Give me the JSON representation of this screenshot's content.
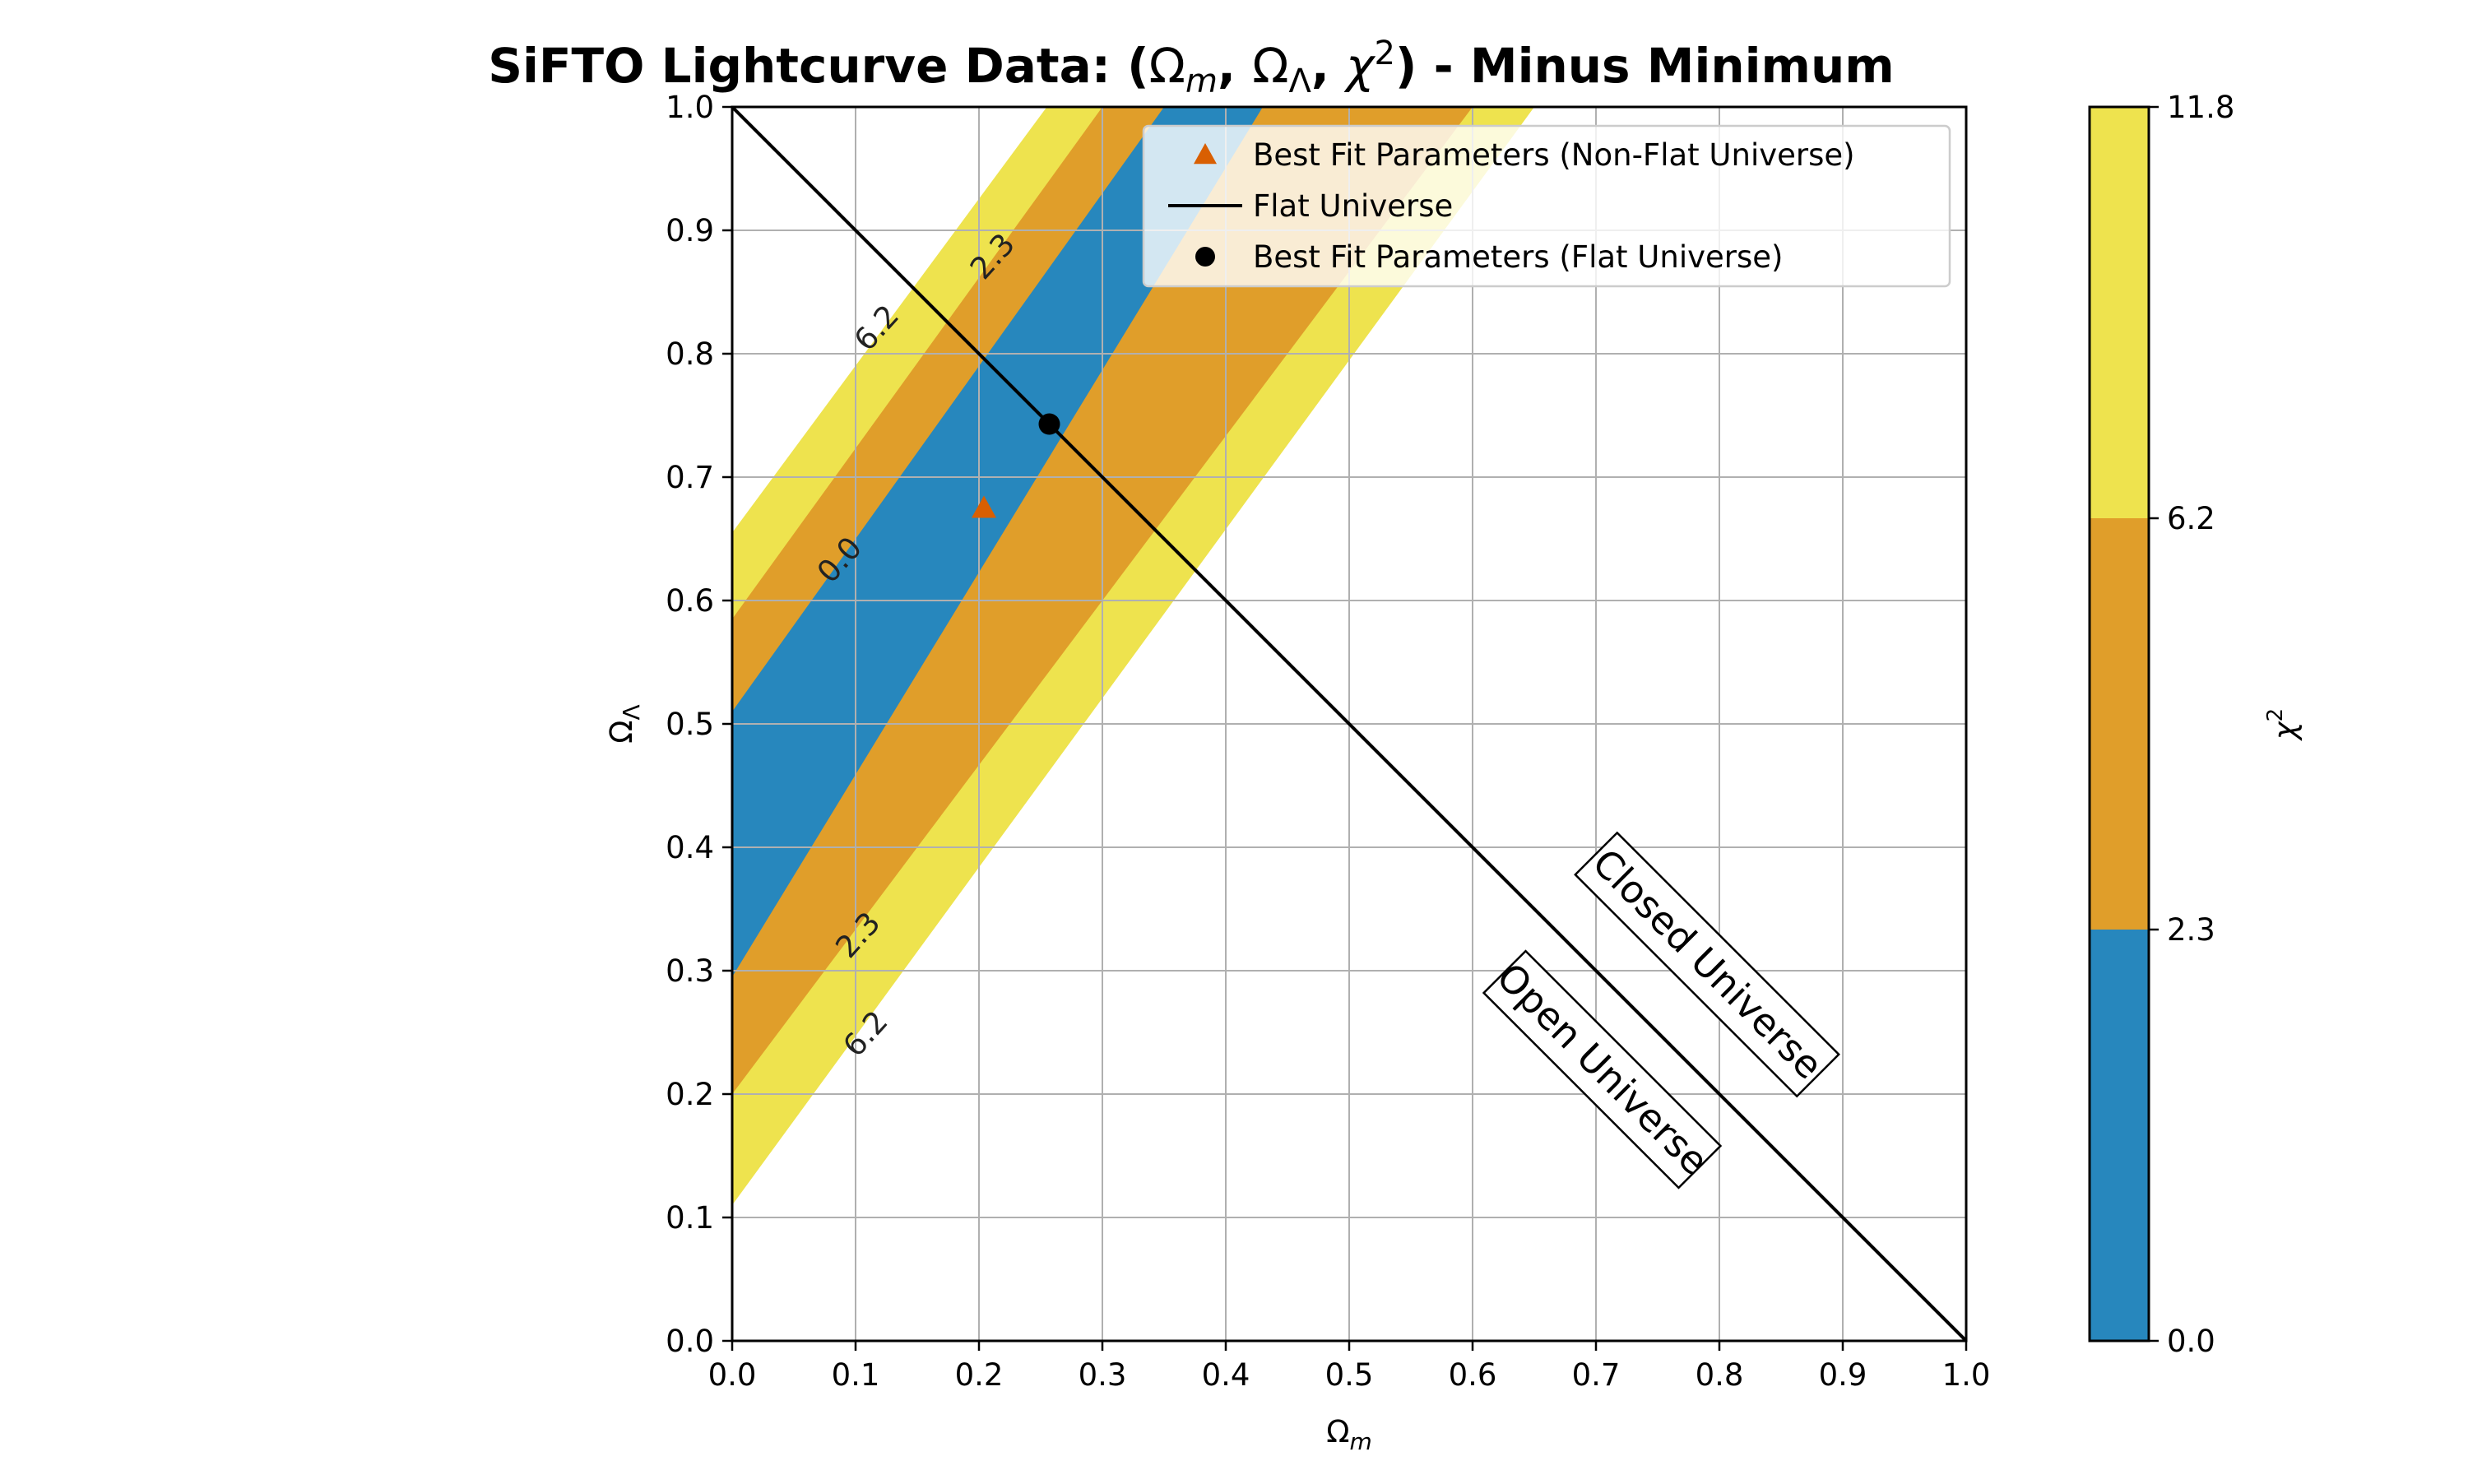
{
  "chart_data": {
    "type": "contour",
    "title": "SiFTO Lightcurve Data: (Ωm, ΩΛ, χ2) - Minus Minimum",
    "title_parts": {
      "prefix": "SiFTO Lightcurve Data: (",
      "omega": "Ω",
      "m": "m",
      "sep1": ", ",
      "lambda": "Λ",
      "sep2": ", ",
      "chi": "χ",
      "sq": "2",
      "suffix": ") - Minus Minimum"
    },
    "xlabel": "Ωm",
    "ylabel": "ΩΛ",
    "xlim": [
      0.0,
      1.0
    ],
    "ylim": [
      0.0,
      1.0
    ],
    "grid": true,
    "x_ticks": [
      "0.0",
      "0.1",
      "0.2",
      "0.3",
      "0.4",
      "0.5",
      "0.6",
      "0.7",
      "0.8",
      "0.9",
      "1.0"
    ],
    "y_ticks": [
      "0.0",
      "0.1",
      "0.2",
      "0.3",
      "0.4",
      "0.5",
      "0.6",
      "0.7",
      "0.8",
      "0.9",
      "1.0"
    ],
    "contour_levels": [
      0.0,
      2.3,
      6.2,
      11.8
    ],
    "bands": [
      {
        "range": [
          0.0,
          2.3
        ],
        "color": "#2787bd",
        "left_edge": [
          [
            0.0,
            0.51
          ],
          [
            0.35,
            1.0
          ]
        ],
        "right_edge": [
          [
            0.0,
            0.295
          ],
          [
            0.43,
            1.0
          ]
        ]
      },
      {
        "range": [
          2.3,
          6.2
        ],
        "color": "#e09e2a",
        "left_edge": [
          [
            0.0,
            0.585
          ],
          [
            0.3,
            1.0
          ]
        ],
        "right_edge": [
          [
            0.0,
            0.2
          ],
          [
            0.6,
            1.0
          ]
        ]
      },
      {
        "range": [
          6.2,
          11.8
        ],
        "color": "#eee34e",
        "left_edge": [
          [
            0.0,
            0.655
          ],
          [
            0.255,
            1.0
          ]
        ],
        "right_edge": [
          [
            0.0,
            0.11
          ],
          [
            0.65,
            1.0
          ]
        ]
      }
    ],
    "contour_labels": [
      {
        "text": "2.3",
        "x": 0.212,
        "y": 0.878
      },
      {
        "text": "6.2",
        "x": 0.118,
        "y": 0.82
      },
      {
        "text": "0.0",
        "x": 0.088,
        "y": 0.632
      },
      {
        "text": "2.3",
        "x": 0.103,
        "y": 0.328
      },
      {
        "text": "6.2",
        "x": 0.109,
        "y": 0.248
      }
    ],
    "series": [
      {
        "name": "Best Fit Parameters (Non-Flat Universe)",
        "kind": "marker",
        "marker": "triangle",
        "color": "#d95f02",
        "x": [
          0.204
        ],
        "y": [
          0.675
        ]
      },
      {
        "name": "Flat Universe",
        "kind": "line",
        "color": "#000000",
        "x": [
          0.0,
          1.0
        ],
        "y": [
          1.0,
          0.0
        ]
      },
      {
        "name": "Best Fit Parameters (Flat Universe)",
        "kind": "marker",
        "marker": "circle",
        "color": "#000000",
        "x": [
          0.257
        ],
        "y": [
          0.743
        ]
      }
    ],
    "legend_position": "top-right",
    "annotations": [
      {
        "text": "Closed Universe",
        "x": 0.79,
        "y": 0.305,
        "rotation_deg": -45
      },
      {
        "text": "Open Universe",
        "x": 0.705,
        "y": 0.22,
        "rotation_deg": -45
      }
    ],
    "colorbar": {
      "label": "χ2",
      "label_parts": {
        "chi": "χ",
        "sq": "2"
      },
      "levels": [
        "0.0",
        "2.3",
        "6.2",
        "11.8"
      ],
      "colors": [
        "#2787bd",
        "#e09e2a",
        "#eee34e"
      ]
    }
  }
}
